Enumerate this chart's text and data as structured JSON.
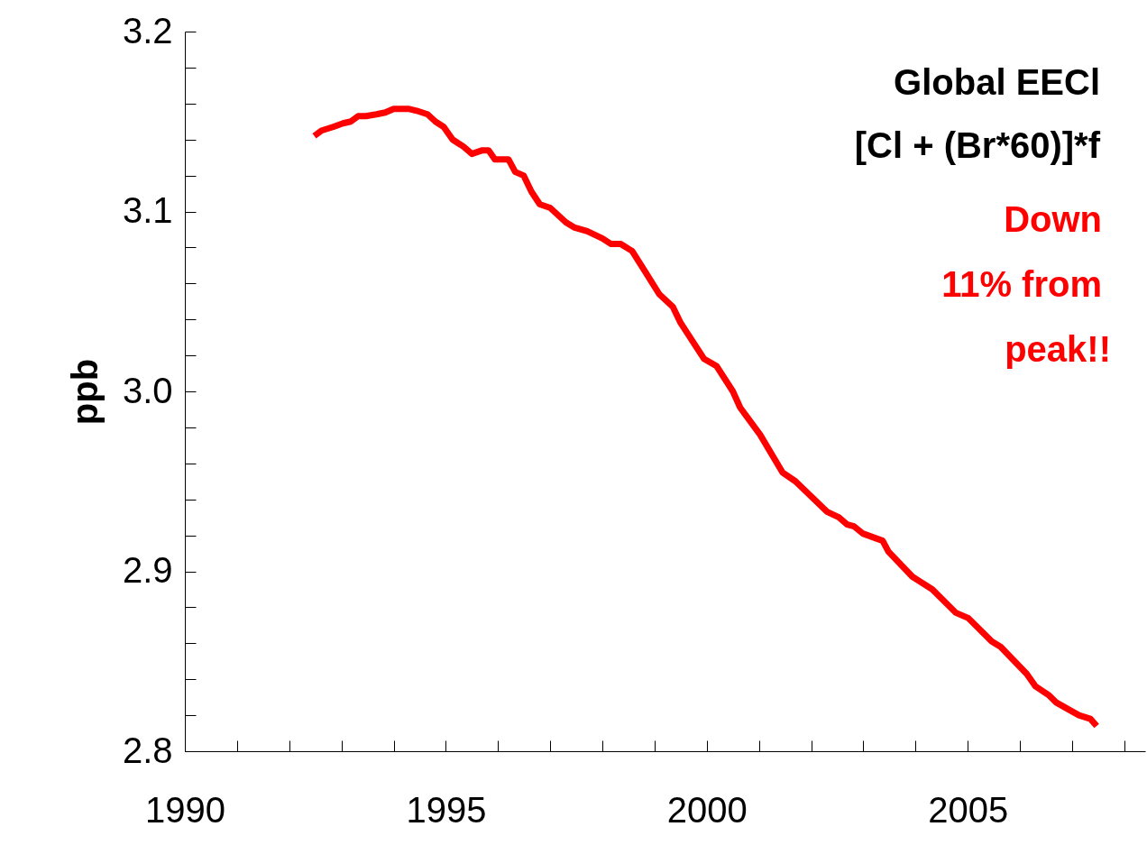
{
  "chart_data": {
    "type": "line",
    "title": "Global EECl",
    "subtitle": "[Cl + (Br*60)]*f",
    "ylabel": "ppb",
    "annotations": [
      "Down",
      "11% from",
      "peak!!"
    ],
    "xlim": [
      1990,
      2008.4
    ],
    "xticks": [
      1990,
      {
        "value": 1991,
        "label": null
      },
      {
        "value": 1992,
        "label": null
      },
      {
        "value": 1993,
        "label": null
      },
      {
        "value": 1994,
        "label": null
      },
      1995,
      {
        "value": 1996,
        "label": null
      },
      {
        "value": 1997,
        "label": null
      },
      {
        "value": 1998,
        "label": null
      },
      {
        "value": 1999,
        "label": null
      },
      2000,
      {
        "value": 2001,
        "label": null
      },
      {
        "value": 2002,
        "label": null
      },
      {
        "value": 2003,
        "label": null
      },
      {
        "value": 2004,
        "label": null
      },
      2005,
      {
        "value": 2006,
        "label": null
      },
      {
        "value": 2007,
        "label": null
      },
      {
        "value": 2008,
        "label": null
      }
    ],
    "ylim": [
      2.8,
      3.2
    ],
    "yticks": [
      {
        "value": 2.8,
        "label": "2.8"
      },
      {
        "value": 2.82,
        "label": null
      },
      {
        "value": 2.84,
        "label": null
      },
      {
        "value": 2.86,
        "label": null
      },
      {
        "value": 2.88,
        "label": null
      },
      2.9,
      {
        "value": 2.92,
        "label": null
      },
      {
        "value": 2.94,
        "label": null
      },
      {
        "value": 2.96,
        "label": null
      },
      {
        "value": 2.98,
        "label": null
      },
      {
        "value": 3.0,
        "label": "3.0"
      },
      {
        "value": 3.02,
        "label": null
      },
      {
        "value": 3.04,
        "label": null
      },
      {
        "value": 3.06,
        "label": null
      },
      {
        "value": 3.08,
        "label": null
      },
      3.1,
      {
        "value": 3.12,
        "label": null
      },
      {
        "value": 3.14,
        "label": null
      },
      {
        "value": 3.16,
        "label": null
      },
      {
        "value": 3.18,
        "label": null
      },
      3.2
    ],
    "grid": false,
    "marker": "none",
    "line_style": "solid",
    "series": [
      {
        "color": "#ff0000",
        "x": [
          1992.48,
          1992.62,
          1992.84,
          1993.03,
          1993.18,
          1993.32,
          1993.47,
          1993.67,
          1993.84,
          1994.0,
          1994.3,
          1994.44,
          1994.65,
          1994.8,
          1994.96,
          1995.13,
          1995.34,
          1995.5,
          1995.7,
          1995.82,
          1995.94,
          1996.2,
          1996.33,
          1996.49,
          1996.64,
          1996.8,
          1997.0,
          1997.3,
          1997.47,
          1997.71,
          1998.0,
          1998.16,
          1998.35,
          1998.57,
          1998.81,
          1999.09,
          1999.35,
          1999.5,
          1999.95,
          2000.19,
          2000.5,
          2000.64,
          2001.02,
          2001.45,
          2001.7,
          2002.31,
          2002.53,
          2002.69,
          2002.82,
          2002.99,
          2003.37,
          2003.48,
          2003.94,
          2004.32,
          2004.77,
          2005.01,
          2005.46,
          2005.63,
          2006.13,
          2006.3,
          2006.56,
          2006.7,
          2007.13,
          2007.35,
          2007.47
        ],
        "values": [
          3.142,
          3.145,
          3.147,
          3.149,
          3.15,
          3.153,
          3.153,
          3.154,
          3.155,
          3.157,
          3.157,
          3.156,
          3.154,
          3.15,
          3.147,
          3.14,
          3.136,
          3.132,
          3.134,
          3.134,
          3.129,
          3.129,
          3.122,
          3.12,
          3.111,
          3.104,
          3.102,
          3.094,
          3.091,
          3.089,
          3.085,
          3.082,
          3.082,
          3.078,
          3.067,
          3.054,
          3.047,
          3.038,
          3.018,
          3.014,
          3.0,
          2.991,
          2.976,
          2.955,
          2.95,
          2.933,
          2.93,
          2.926,
          2.925,
          2.921,
          2.917,
          2.911,
          2.897,
          2.89,
          2.877,
          2.874,
          2.861,
          2.858,
          2.843,
          2.836,
          2.831,
          2.827,
          2.82,
          2.818,
          2.814
        ]
      }
    ]
  }
}
